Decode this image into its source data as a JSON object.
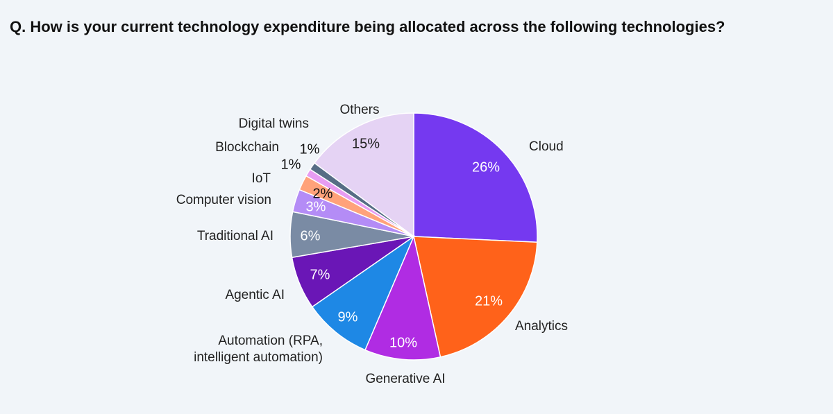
{
  "title": "Q. How is your current technology expenditure being allocated across the following technologies?",
  "chart_data": {
    "type": "pie",
    "title": "",
    "unit": "%",
    "slices": [
      {
        "label": [
          "Cloud"
        ],
        "value": 26,
        "value_label": "26%",
        "color": "#7539f0",
        "value_text_color": "#ffffff"
      },
      {
        "label": [
          "Analytics"
        ],
        "value": 21,
        "value_label": "21%",
        "color": "#ff621a",
        "value_text_color": "#ffffff"
      },
      {
        "label": [
          "Generative AI"
        ],
        "value": 10,
        "value_label": "10%",
        "color": "#b02ce3",
        "value_text_color": "#ffffff"
      },
      {
        "label": [
          "Automation (RPA,",
          "intelligent automation)"
        ],
        "value": 9,
        "value_label": "9%",
        "color": "#1e88e5",
        "value_text_color": "#ffffff"
      },
      {
        "label": [
          "Agentic AI"
        ],
        "value": 7,
        "value_label": "7%",
        "color": "#6a16b6",
        "value_text_color": "#ffffff"
      },
      {
        "label": [
          "Traditional AI"
        ],
        "value": 6,
        "value_label": "6%",
        "color": "#7a8ba4",
        "value_text_color": "#ffffff"
      },
      {
        "label": [
          "Computer vision"
        ],
        "value": 3,
        "value_label": "3%",
        "color": "#b48cf6",
        "value_text_color": "#ffffff"
      },
      {
        "label": [
          "IoT"
        ],
        "value": 2,
        "value_label": "2%",
        "color": "#ffa27a",
        "value_text_color": "#111111"
      },
      {
        "label": [
          "Blockchain"
        ],
        "value": 1,
        "value_label": "1%",
        "color": "#e79cf2",
        "value_text_color": "#111111"
      },
      {
        "label": [
          "Digital twins"
        ],
        "value": 1,
        "value_label": "1%",
        "color": "#566d85",
        "value_text_color": "#111111"
      },
      {
        "label": [
          "Others"
        ],
        "value": 15,
        "value_label": "15%",
        "color": "#e5d3f4",
        "value_text_color": "#222222"
      }
    ]
  }
}
